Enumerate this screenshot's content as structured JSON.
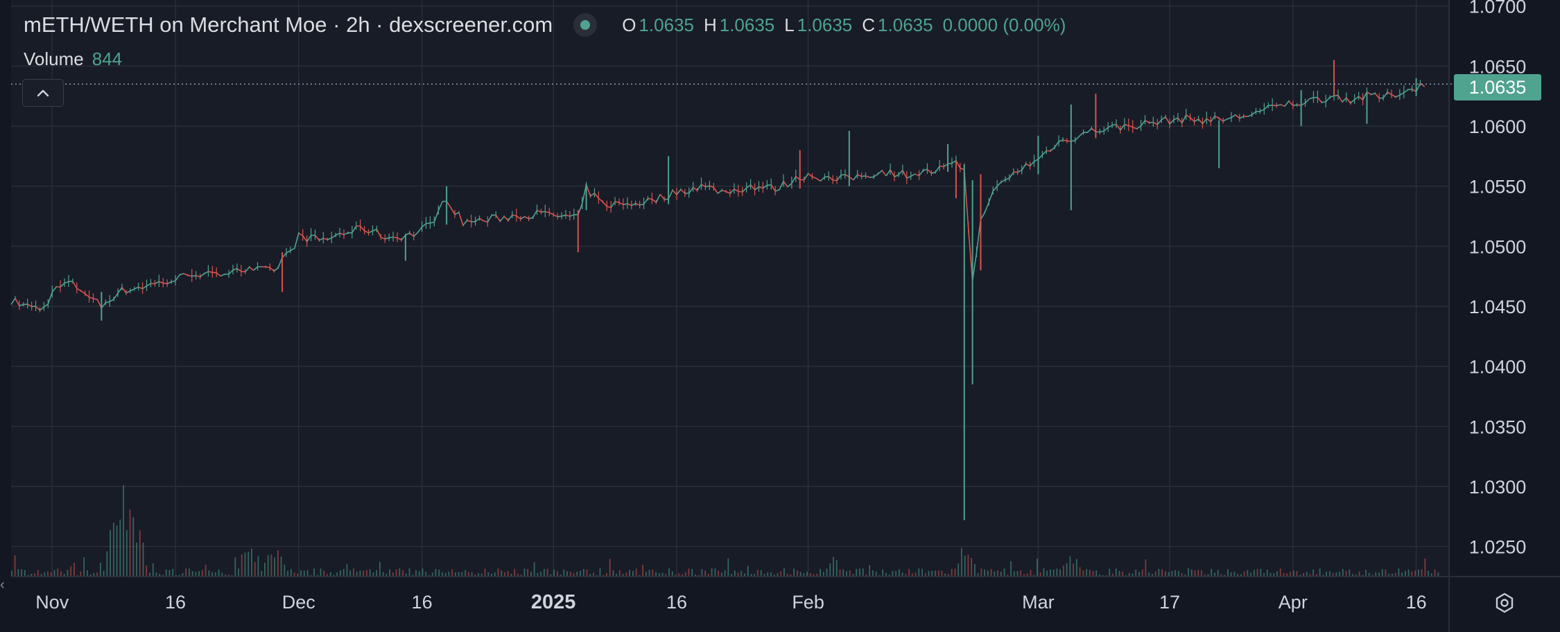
{
  "header": {
    "title": "mETH/WETH on Merchant Moe · 2h · dexscreener.com",
    "ohlc": {
      "o_label": "O",
      "o": "1.0635",
      "h_label": "H",
      "h": "1.0635",
      "l_label": "L",
      "l": "1.0635",
      "c_label": "C",
      "c": "1.0635",
      "change": "0.0000 (0.00%)"
    }
  },
  "volume": {
    "label": "Volume",
    "value": "844"
  },
  "last_price": "1.0635",
  "colors": {
    "up": "#4fa38f",
    "down": "#d9534f",
    "background": "#131722",
    "grid": "#2a2e39",
    "text": "#d1d4dc"
  },
  "icons": {
    "collapse": "chevron-up-icon",
    "settings": "gear-icon",
    "handle": "chevron-left-icon"
  },
  "chart_data": {
    "type": "line",
    "title": "mETH/WETH on Merchant Moe · 2h · dexscreener.com",
    "xlabel": "",
    "ylabel": "",
    "x_ticks": [
      {
        "date": "2024-11-01",
        "label": "Nov",
        "bold": false
      },
      {
        "date": "2024-11-16",
        "label": "16",
        "bold": false
      },
      {
        "date": "2024-12-01",
        "label": "Dec",
        "bold": false
      },
      {
        "date": "2024-12-16",
        "label": "16",
        "bold": false
      },
      {
        "date": "2025-01-01",
        "label": "2025",
        "bold": true
      },
      {
        "date": "2025-01-16",
        "label": "16",
        "bold": false
      },
      {
        "date": "2025-02-01",
        "label": "Feb",
        "bold": false
      },
      {
        "date": "2025-03-01",
        "label": "Mar",
        "bold": false
      },
      {
        "date": "2025-03-17",
        "label": "17",
        "bold": false
      },
      {
        "date": "2025-04-01",
        "label": "Apr",
        "bold": false
      },
      {
        "date": "2025-04-16",
        "label": "16",
        "bold": false
      }
    ],
    "y_ticks": [
      "1.0700",
      "1.0650",
      "1.0600",
      "1.0550",
      "1.0500",
      "1.0450",
      "1.0400",
      "1.0350",
      "1.0300",
      "1.0250"
    ],
    "ylim": [
      1.0225,
      1.0705
    ],
    "xlim": [
      "2024-10-27",
      "2025-04-20"
    ],
    "grid": true,
    "series": [
      {
        "values": [
          [
            "2024-10-27",
            1.0455
          ],
          [
            "2024-10-29",
            1.045
          ],
          [
            "2024-10-31",
            1.0448
          ],
          [
            "2024-11-01",
            1.0462
          ],
          [
            "2024-11-03",
            1.047
          ],
          [
            "2024-11-05",
            1.0462
          ],
          [
            "2024-11-07",
            1.045
          ],
          [
            "2024-11-09",
            1.0462
          ],
          [
            "2024-11-11",
            1.0465
          ],
          [
            "2024-11-13",
            1.0468
          ],
          [
            "2024-11-16",
            1.0472
          ],
          [
            "2024-11-18",
            1.0478
          ],
          [
            "2024-11-21",
            1.0475
          ],
          [
            "2024-11-23",
            1.0482
          ],
          [
            "2024-11-25",
            1.048
          ],
          [
            "2024-11-27",
            1.048
          ],
          [
            "2024-11-28",
            1.0478
          ],
          [
            "2024-11-29",
            1.049
          ],
          [
            "2024-11-30",
            1.0495
          ],
          [
            "2024-12-01",
            1.0508
          ],
          [
            "2024-12-04",
            1.0505
          ],
          [
            "2024-12-06",
            1.051
          ],
          [
            "2024-12-09",
            1.0515
          ],
          [
            "2024-12-12",
            1.0507
          ],
          [
            "2024-12-15",
            1.051
          ],
          [
            "2024-12-17",
            1.0518
          ],
          [
            "2024-12-19",
            1.054
          ],
          [
            "2024-12-21",
            1.052
          ],
          [
            "2024-12-24",
            1.0522
          ],
          [
            "2024-12-27",
            1.0525
          ],
          [
            "2024-12-30",
            1.0527
          ],
          [
            "2025-01-02",
            1.0525
          ],
          [
            "2025-01-04",
            1.0523
          ],
          [
            "2025-01-05",
            1.0548
          ],
          [
            "2025-01-07",
            1.0535
          ],
          [
            "2025-01-10",
            1.0535
          ],
          [
            "2025-01-13",
            1.0538
          ],
          [
            "2025-01-16",
            1.0545
          ],
          [
            "2025-01-19",
            1.055
          ],
          [
            "2025-01-22",
            1.0545
          ],
          [
            "2025-01-25",
            1.055
          ],
          [
            "2025-01-28",
            1.0548
          ],
          [
            "2025-02-01",
            1.056
          ],
          [
            "2025-02-04",
            1.0555
          ],
          [
            "2025-02-07",
            1.0558
          ],
          [
            "2025-02-10",
            1.0562
          ],
          [
            "2025-02-13",
            1.056
          ],
          [
            "2025-02-16",
            1.0562
          ],
          [
            "2025-02-19",
            1.0568
          ],
          [
            "2025-02-20",
            1.0565
          ],
          [
            "2025-02-21",
            1.047
          ],
          [
            "2025-02-22",
            1.052
          ],
          [
            "2025-02-23",
            1.054
          ],
          [
            "2025-02-25",
            1.0555
          ],
          [
            "2025-02-27",
            1.0565
          ],
          [
            "2025-03-01",
            1.0572
          ],
          [
            "2025-03-03",
            1.0585
          ],
          [
            "2025-03-05",
            1.059
          ],
          [
            "2025-03-07",
            1.0595
          ],
          [
            "2025-03-09",
            1.0598
          ],
          [
            "2025-03-12",
            1.06
          ],
          [
            "2025-03-15",
            1.0603
          ],
          [
            "2025-03-17",
            1.0605
          ],
          [
            "2025-03-19",
            1.0606
          ],
          [
            "2025-03-22",
            1.0605
          ],
          [
            "2025-03-25",
            1.0607
          ],
          [
            "2025-03-28",
            1.0612
          ],
          [
            "2025-03-31",
            1.0618
          ],
          [
            "2025-04-02",
            1.062
          ],
          [
            "2025-04-04",
            1.0622
          ],
          [
            "2025-04-06",
            1.0625
          ],
          [
            "2025-04-08",
            1.0622
          ],
          [
            "2025-04-10",
            1.0625
          ],
          [
            "2025-04-12",
            1.0624
          ],
          [
            "2025-04-14",
            1.0628
          ],
          [
            "2025-04-16",
            1.0632
          ],
          [
            "2025-04-17",
            1.0635
          ]
        ]
      }
    ],
    "spikes": [
      {
        "date": "2024-11-07",
        "high": 1.0462,
        "low": 1.0438
      },
      {
        "date": "2024-11-29",
        "high": 1.0495,
        "low": 1.0462
      },
      {
        "date": "2024-12-14",
        "high": 1.051,
        "low": 1.0488
      },
      {
        "date": "2024-12-19",
        "high": 1.055,
        "low": 1.0518
      },
      {
        "date": "2025-01-04",
        "high": 1.053,
        "low": 1.0495
      },
      {
        "date": "2025-01-05",
        "high": 1.0552,
        "low": 1.053
      },
      {
        "date": "2025-01-15",
        "high": 1.0575,
        "low": 1.0535
      },
      {
        "date": "2025-01-31",
        "high": 1.058,
        "low": 1.0548
      },
      {
        "date": "2025-02-06",
        "high": 1.0596,
        "low": 1.055
      },
      {
        "date": "2025-02-18",
        "high": 1.0585,
        "low": 1.0562
      },
      {
        "date": "2025-02-19",
        "high": 1.057,
        "low": 1.054
      },
      {
        "date": "2025-02-20",
        "high": 1.0568,
        "low": 1.0272
      },
      {
        "date": "2025-02-21",
        "high": 1.0555,
        "low": 1.0385
      },
      {
        "date": "2025-02-22",
        "high": 1.056,
        "low": 1.048
      },
      {
        "date": "2025-03-01",
        "high": 1.0592,
        "low": 1.056
      },
      {
        "date": "2025-03-05",
        "high": 1.0618,
        "low": 1.053
      },
      {
        "date": "2025-03-08",
        "high": 1.0627,
        "low": 1.059
      },
      {
        "date": "2025-03-23",
        "high": 1.0605,
        "low": 1.0565
      },
      {
        "date": "2025-04-02",
        "high": 1.063,
        "low": 1.06
      },
      {
        "date": "2025-04-06",
        "high": 1.0655,
        "low": 1.0625
      },
      {
        "date": "2025-04-10",
        "high": 1.0628,
        "low": 1.0602
      },
      {
        "date": "2025-04-16",
        "high": 1.064,
        "low": 1.0625
      }
    ],
    "volume_bursts": [
      {
        "date": "2024-11-09",
        "peak": 100
      },
      {
        "date": "2024-11-10",
        "peak": 78
      },
      {
        "date": "2024-11-11",
        "peak": 55
      },
      {
        "date": "2024-11-25",
        "peak": 36
      },
      {
        "date": "2024-11-28",
        "peak": 30
      },
      {
        "date": "2025-02-20",
        "peak": 28
      },
      {
        "date": "2025-02-04",
        "peak": 18
      },
      {
        "date": "2025-03-05",
        "peak": 22
      }
    ]
  }
}
